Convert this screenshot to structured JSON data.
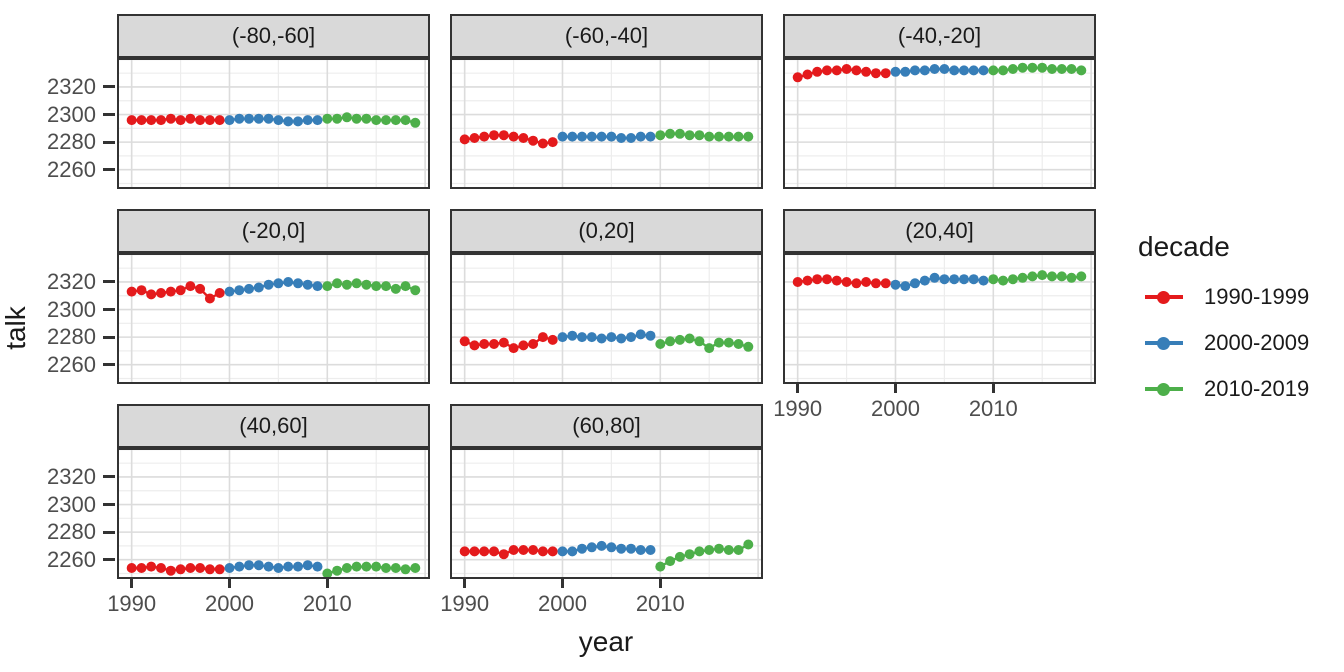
{
  "chart_data": {
    "type": "line",
    "title": "",
    "xlabel": "year",
    "ylabel": "talk",
    "legend_title": "decade",
    "legend_position": "right",
    "grid_on": true,
    "x_ticks": [
      1990,
      2000,
      2010
    ],
    "y_ticks": [
      2320,
      2300,
      2280,
      2260
    ],
    "xlim": [
      1988.5,
      2020.5
    ],
    "ylim": [
      2246,
      2341
    ],
    "grid": {
      "x_major": [
        1990,
        2000,
        2010,
        2020
      ],
      "x_minor": [
        1995,
        2005,
        2015
      ],
      "y_major": [
        2260,
        2280,
        2300,
        2320,
        2340
      ],
      "y_minor": [
        2250,
        2270,
        2290,
        2310,
        2330
      ]
    },
    "series": [
      {
        "name": "1990-1999",
        "color": "#E41A1C",
        "x_start": 1990
      },
      {
        "name": "2000-2009",
        "color": "#377EB8",
        "x_start": 2000
      },
      {
        "name": "2010-2019",
        "color": "#4DAF4A",
        "x_start": 2010
      }
    ],
    "facets": [
      {
        "label": "(-80,-60]",
        "values": [
          [
            2296,
            2296,
            2296,
            2296,
            2297,
            2296,
            2297,
            2296,
            2296,
            2296
          ],
          [
            2296,
            2297,
            2297,
            2297,
            2297,
            2296,
            2295,
            2295,
            2296,
            2296
          ],
          [
            2297,
            2297,
            2298,
            2297,
            2297,
            2296,
            2296,
            2296,
            2296,
            2294
          ]
        ]
      },
      {
        "label": "(-60,-40]",
        "values": [
          [
            2282,
            2283,
            2284,
            2285,
            2285,
            2284,
            2283,
            2281,
            2279,
            2280
          ],
          [
            2284,
            2284,
            2284,
            2284,
            2284,
            2284,
            2283,
            2283,
            2284,
            2284
          ],
          [
            2285,
            2286,
            2286,
            2285,
            2285,
            2284,
            2284,
            2284,
            2284,
            2284
          ]
        ]
      },
      {
        "label": "(-40,-20]",
        "values": [
          [
            2327,
            2329,
            2331,
            2332,
            2332,
            2333,
            2332,
            2331,
            2330,
            2330
          ],
          [
            2331,
            2331,
            2332,
            2332,
            2333,
            2333,
            2332,
            2332,
            2332,
            2332
          ],
          [
            2332,
            2332,
            2333,
            2334,
            2334,
            2334,
            2333,
            2333,
            2333,
            2332
          ]
        ]
      },
      {
        "label": "(-20,0]",
        "values": [
          [
            2313,
            2314,
            2311,
            2312,
            2313,
            2314,
            2317,
            2315,
            2308,
            2312
          ],
          [
            2313,
            2314,
            2315,
            2316,
            2318,
            2319,
            2320,
            2319,
            2318,
            2317
          ],
          [
            2317,
            2319,
            2318,
            2319,
            2318,
            2317,
            2317,
            2315,
            2317,
            2314
          ]
        ]
      },
      {
        "label": "(0,20]",
        "values": [
          [
            2277,
            2274,
            2275,
            2275,
            2276,
            2272,
            2274,
            2275,
            2280,
            2278
          ],
          [
            2280,
            2281,
            2280,
            2280,
            2279,
            2280,
            2279,
            2280,
            2282,
            2281
          ],
          [
            2275,
            2277,
            2278,
            2279,
            2277,
            2272,
            2276,
            2276,
            2275,
            2273
          ]
        ]
      },
      {
        "label": "(20,40]",
        "values": [
          [
            2320,
            2321,
            2322,
            2322,
            2321,
            2320,
            2319,
            2320,
            2319,
            2319
          ],
          [
            2318,
            2317,
            2319,
            2321,
            2323,
            2322,
            2322,
            2322,
            2322,
            2321
          ],
          [
            2322,
            2321,
            2322,
            2323,
            2324,
            2325,
            2324,
            2324,
            2323,
            2324
          ]
        ]
      },
      {
        "label": "(40,60]",
        "values": [
          [
            2254,
            2254,
            2255,
            2254,
            2252,
            2253,
            2254,
            2254,
            2253,
            2253
          ],
          [
            2254,
            2255,
            2256,
            2256,
            2255,
            2254,
            2255,
            2255,
            2256,
            2255
          ],
          [
            2250,
            2252,
            2254,
            2255,
            2255,
            2255,
            2254,
            2254,
            2253,
            2254
          ]
        ]
      },
      {
        "label": "(60,80]",
        "values": [
          [
            2266,
            2266,
            2266,
            2266,
            2264,
            2267,
            2267,
            2267,
            2266,
            2266
          ],
          [
            2266,
            2266,
            2268,
            2269,
            2270,
            2269,
            2268,
            2268,
            2267,
            2267
          ],
          [
            2255,
            2259,
            2262,
            2264,
            2266,
            2267,
            2268,
            2267,
            2267,
            2271
          ]
        ]
      }
    ],
    "colors": {
      "strip_background": "#D9D9D9",
      "panel_border": "#333333",
      "major_gridline": "#DCDCDC",
      "minor_gridline": "#EDEDED",
      "tick_text": "#4D4D4D"
    }
  }
}
